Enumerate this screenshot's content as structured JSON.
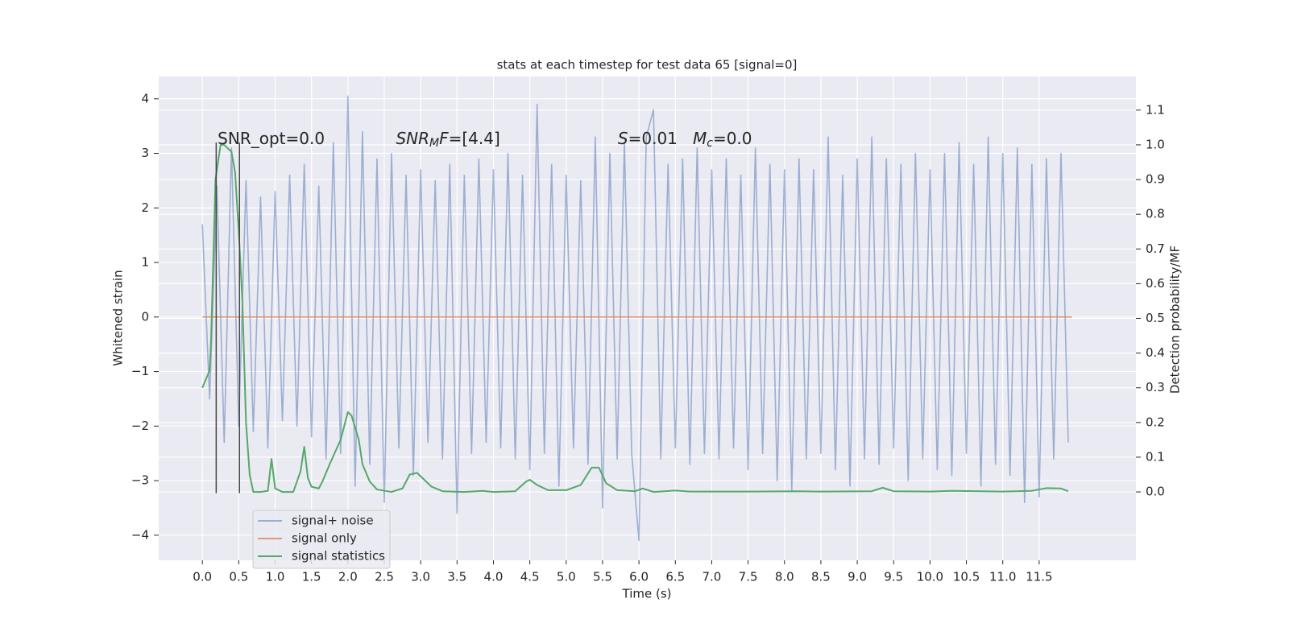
{
  "chart_data": {
    "type": "line",
    "title": "stats at each timestep for test data 65 [signal=0]",
    "xlabel": "Time (s)",
    "ylabel": "Whitened strain",
    "y2label": "Detection probability/MF",
    "xlim": [
      -0.6,
      12.83
    ],
    "ylim": [
      -4.46,
      4.41
    ],
    "y2lim": [
      -0.197,
      1.197
    ],
    "grid": true,
    "legend": "lower left",
    "xticks": [
      {
        "value": 0,
        "label": "0.0"
      },
      {
        "value": 0.5,
        "label": "0.5"
      },
      {
        "value": 1,
        "label": "1.0"
      },
      {
        "value": 1.5,
        "label": "1.5"
      },
      {
        "value": 2,
        "label": "2.0"
      },
      {
        "value": 2.5,
        "label": "2.5"
      },
      {
        "value": 3,
        "label": "3.0"
      },
      {
        "value": 3.5,
        "label": "3.5"
      },
      {
        "value": 4,
        "label": "4.0"
      },
      {
        "value": 4.5,
        "label": "4.5"
      },
      {
        "value": 5,
        "label": "5.0"
      },
      {
        "value": 5.5,
        "label": "5.5"
      },
      {
        "value": 6,
        "label": "6.0"
      },
      {
        "value": 6.5,
        "label": "6.5"
      },
      {
        "value": 7,
        "label": "7.0"
      },
      {
        "value": 7.5,
        "label": "7.5"
      },
      {
        "value": 8,
        "label": "8.0"
      },
      {
        "value": 8.5,
        "label": "8.5"
      },
      {
        "value": 9,
        "label": "9.0"
      },
      {
        "value": 9.5,
        "label": "9.5"
      },
      {
        "value": 10,
        "label": "10.0"
      },
      {
        "value": 10.5,
        "label": "10.5"
      },
      {
        "value": 11,
        "label": "11.0"
      },
      {
        "value": 11.5,
        "label": "11.5"
      }
    ],
    "yticks": [
      {
        "value": -4,
        "label": "−4"
      },
      {
        "value": -3,
        "label": "−3"
      },
      {
        "value": -2,
        "label": "−2"
      },
      {
        "value": -1,
        "label": "−1"
      },
      0,
      1,
      2,
      3,
      4
    ],
    "y2ticks": [
      {
        "value": 0,
        "label": "0.0"
      },
      {
        "value": 0.1,
        "label": "0.1"
      },
      {
        "value": 0.2,
        "label": "0.2"
      },
      {
        "value": 0.3,
        "label": "0.3"
      },
      {
        "value": 0.4,
        "label": "0.4"
      },
      {
        "value": 0.5,
        "label": "0.5"
      },
      {
        "value": 0.6,
        "label": "0.6"
      },
      {
        "value": 0.7,
        "label": "0.7"
      },
      {
        "value": 0.8,
        "label": "0.8"
      },
      {
        "value": 0.9,
        "label": "0.9"
      },
      {
        "value": 1,
        "label": "1.0"
      },
      {
        "value": 1.1,
        "label": "1.1"
      }
    ],
    "series": [
      {
        "name": "signal+ noise",
        "color": "#4c72b0",
        "opacity": 0.5,
        "axis": "y",
        "x": [
          0,
          0.1,
          0.2,
          0.3,
          0.4,
          0.5,
          0.6,
          0.7,
          0.8,
          0.9,
          1,
          1.1,
          1.2,
          1.3,
          1.4,
          1.5,
          1.6,
          1.7,
          1.8,
          1.9,
          2,
          2.1,
          2.2,
          2.3,
          2.4,
          2.5,
          2.6,
          2.7,
          2.8,
          2.9,
          3,
          3.1,
          3.2,
          3.3,
          3.4,
          3.5,
          3.6,
          3.7,
          3.8,
          3.9,
          4,
          4.1,
          4.2,
          4.3,
          4.4,
          4.5,
          4.6,
          4.7,
          4.8,
          4.9,
          5,
          5.1,
          5.2,
          5.3,
          5.4,
          5.5,
          5.6,
          5.7,
          5.8,
          5.9,
          6,
          6.1,
          6.2,
          6.3,
          6.4,
          6.5,
          6.6,
          6.7,
          6.8,
          6.9,
          7,
          7.1,
          7.2,
          7.3,
          7.4,
          7.5,
          7.6,
          7.7,
          7.8,
          7.9,
          8,
          8.1,
          8.2,
          8.3,
          8.4,
          8.5,
          8.6,
          8.7,
          8.8,
          8.9,
          9,
          9.1,
          9.2,
          9.3,
          9.4,
          9.5,
          9.6,
          9.7,
          9.8,
          9.9,
          10,
          10.1,
          10.2,
          10.3,
          10.4,
          10.5,
          10.6,
          10.7,
          10.8,
          10.9,
          11,
          11.1,
          11.2,
          11.3,
          11.4,
          11.5,
          11.6,
          11.7,
          11.8,
          11.9
        ],
        "values": [
          1.7,
          -1.5,
          2.4,
          -2.3,
          3.1,
          -2.0,
          2.5,
          -2.1,
          2.2,
          -2.4,
          2.3,
          -1.9,
          2.6,
          -2.0,
          2.8,
          -2.2,
          2.4,
          -2.6,
          3.2,
          -2.5,
          4.05,
          -3.1,
          3.4,
          -2.7,
          2.9,
          -3.4,
          3.0,
          -2.4,
          2.6,
          -2.9,
          2.7,
          -2.3,
          2.5,
          -2.6,
          2.8,
          -3.6,
          2.6,
          -2.5,
          2.9,
          -2.3,
          2.7,
          -2.4,
          3.0,
          -2.6,
          2.6,
          -2.8,
          3.9,
          -2.5,
          2.8,
          -3.1,
          2.6,
          -2.4,
          2.5,
          -2.7,
          3.3,
          -3.5,
          3.0,
          -2.6,
          3.2,
          -2.5,
          -4.1,
          3.3,
          3.8,
          -2.6,
          2.8,
          -2.4,
          2.9,
          -2.7,
          3.1,
          -2.5,
          2.7,
          -2.6,
          2.9,
          -2.4,
          2.6,
          -2.8,
          3.1,
          -2.5,
          2.8,
          -3.0,
          2.7,
          -3.2,
          2.9,
          -2.6,
          2.7,
          -2.5,
          3.3,
          -2.8,
          2.6,
          -3.1,
          2.9,
          -2.6,
          3.3,
          -2.7,
          2.9,
          -2.4,
          2.8,
          -3.0,
          3.0,
          -2.6,
          2.7,
          -2.8,
          3.0,
          -2.9,
          3.2,
          -2.5,
          2.8,
          -3.1,
          3.3,
          -2.7,
          3.0,
          -2.9,
          3.1,
          -3.4,
          2.8,
          -3.3,
          2.9,
          -2.6,
          3.0,
          -2.3
        ]
      },
      {
        "name": "signal only",
        "color": "#dd8452",
        "opacity": 0.8,
        "axis": "y",
        "x": [
          0,
          11.95
        ],
        "values": [
          0,
          0
        ]
      },
      {
        "name": "signal statistics",
        "color": "#55a868",
        "opacity": 1,
        "axis": "y2",
        "x": [
          0,
          0.1,
          0.12,
          0.18,
          0.25,
          0.3,
          0.4,
          0.45,
          0.5,
          0.55,
          0.6,
          0.65,
          0.7,
          0.8,
          0.9,
          0.95,
          1,
          1.1,
          1.25,
          1.35,
          1.4,
          1.45,
          1.5,
          1.6,
          1.65,
          1.75,
          1.9,
          2,
          2.05,
          2.15,
          2.2,
          2.3,
          2.4,
          2.6,
          2.75,
          2.85,
          2.95,
          3.05,
          3.15,
          3.3,
          3.6,
          3.85,
          4,
          4.3,
          4.45,
          4.5,
          4.6,
          4.75,
          5,
          5.2,
          5.35,
          5.45,
          5.55,
          5.7,
          5.95,
          6.05,
          6.2,
          6.5,
          6.7,
          7.5,
          8.2,
          8.5,
          9.2,
          9.35,
          9.5,
          10,
          10.3,
          11,
          11.4,
          11.6,
          11.8,
          11.9
        ],
        "values": [
          0.3,
          0.35,
          0.44,
          0.9,
          1.0,
          1.0,
          0.98,
          0.92,
          0.75,
          0.55,
          0.2,
          0.05,
          0.0,
          0.0,
          0.003,
          0.095,
          0.01,
          0.0,
          0.0,
          0.06,
          0.13,
          0.04,
          0.015,
          0.01,
          0.03,
          0.08,
          0.15,
          0.23,
          0.22,
          0.15,
          0.08,
          0.03,
          0.007,
          0.0,
          0.01,
          0.05,
          0.055,
          0.035,
          0.015,
          0.002,
          0.0,
          0.003,
          0.0,
          0.002,
          0.03,
          0.035,
          0.02,
          0.005,
          0.005,
          0.02,
          0.07,
          0.07,
          0.025,
          0.005,
          0.002,
          0.01,
          0.0,
          0.004,
          0.001,
          0.001,
          0.002,
          0.001,
          0.002,
          0.012,
          0.002,
          0.001,
          0.003,
          0.001,
          0.003,
          0.011,
          0.01,
          0.002
        ]
      }
    ],
    "vlines": {
      "x": [
        0.19,
        0.51
      ],
      "ymin": -3.23,
      "ymax": 3.2,
      "color": "#444444"
    },
    "annotations": [
      {
        "parts": [
          "SNR_opt=0.0"
        ],
        "styles": [
          "normal"
        ],
        "x": 0.21,
        "y": 3.26
      },
      {
        "parts": [
          "SNR",
          "M",
          "F",
          "=[4.4]"
        ],
        "styles": [
          "italic",
          "sub-italic",
          "italic",
          "normal"
        ],
        "x": 2.66,
        "y": 3.26
      },
      {
        "parts": [
          "S",
          "=0.01   ",
          "M",
          "c",
          "=0.0"
        ],
        "styles": [
          "italic",
          "normal",
          "italic",
          "sub-italic",
          "normal"
        ],
        "x": 5.71,
        "y": 3.26
      }
    ]
  }
}
